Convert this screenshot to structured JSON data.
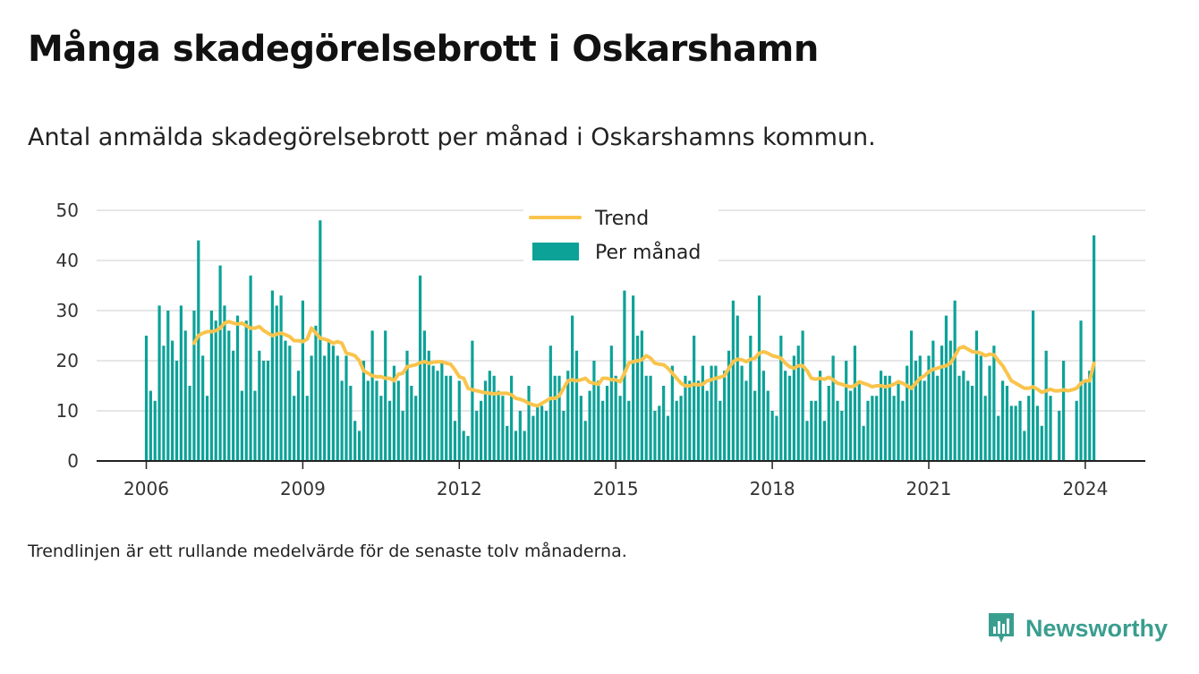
{
  "title": "Många skadegörelsebrott i Oskarshamn",
  "subtitle": "Antal anmälda skadegörelsebrott per månad i Oskarshamns kommun.",
  "note": "Trendlinjen är ett rullande medelvärde för de senaste tolv månaderna.",
  "brand": {
    "name": "Newsworthy",
    "color": "#3a9e8f"
  },
  "chart_data": {
    "type": "bar",
    "start": "2006-01",
    "x_ticks": [
      "2006",
      "2009",
      "2012",
      "2015",
      "2018",
      "2021",
      "2024"
    ],
    "y_ticks": [
      0,
      10,
      20,
      30,
      40,
      50
    ],
    "ylim": [
      0,
      50
    ],
    "grid": true,
    "legend_placement": "top-center",
    "series": [
      {
        "name": "Per månad",
        "kind": "bar",
        "color": "#0ca298",
        "values": [
          25,
          14,
          12,
          31,
          23,
          30,
          24,
          20,
          31,
          26,
          15,
          30,
          44,
          21,
          13,
          30,
          28,
          39,
          31,
          26,
          22,
          29,
          14,
          28,
          37,
          14,
          22,
          20,
          20,
          34,
          31,
          33,
          24,
          23,
          13,
          18,
          32,
          13,
          21,
          27,
          48,
          21,
          24,
          23,
          21,
          16,
          21,
          15,
          8,
          6,
          20,
          16,
          26,
          16,
          13,
          26,
          12,
          19,
          16,
          10,
          22,
          15,
          13,
          37,
          26,
          22,
          19,
          18,
          20,
          17,
          17,
          8,
          16,
          6,
          5,
          24,
          10,
          12,
          16,
          18,
          17,
          14,
          13,
          7,
          17,
          6,
          10,
          6,
          15,
          9,
          11,
          11,
          10,
          23,
          17,
          17,
          10,
          18,
          29,
          22,
          13,
          8,
          14,
          20,
          16,
          12,
          15,
          23,
          17,
          13,
          34,
          12,
          33,
          25,
          26,
          17,
          17,
          10,
          11,
          15,
          9,
          19,
          12,
          13,
          17,
          16,
          25,
          16,
          19,
          14,
          19,
          19,
          12,
          18,
          22,
          32,
          29,
          19,
          16,
          25,
          14,
          33,
          18,
          14,
          10,
          9,
          25,
          18,
          17,
          21,
          23,
          26,
          8,
          12,
          12,
          18,
          8,
          15,
          21,
          12,
          10,
          20,
          14,
          23,
          16,
          7,
          12,
          13,
          13,
          18,
          17,
          17,
          13,
          16,
          12,
          19,
          26,
          20,
          21,
          16,
          21,
          24,
          17,
          23,
          29,
          24,
          32,
          17,
          18,
          16,
          15,
          26,
          21,
          13,
          19,
          23,
          9,
          16,
          15,
          11,
          11,
          12,
          6,
          13,
          30,
          11,
          7,
          22,
          13,
          0,
          10,
          20,
          0,
          0,
          12,
          28,
          16,
          18,
          45
        ]
      },
      {
        "name": "Trend",
        "kind": "line",
        "color": "#f9c44c",
        "start_index": 11,
        "values": [
          23.5,
          25,
          25.5,
          25.8,
          25.8,
          26,
          26.5,
          27.5,
          27.8,
          27.5,
          27.3,
          27.5,
          27,
          26.5,
          26.5,
          26.8,
          26,
          25.5,
          25,
          25.3,
          25.5,
          25.2,
          24.8,
          24,
          24,
          23.8,
          24.3,
          26.5,
          25.5,
          24.5,
          24.3,
          24,
          23.5,
          23.8,
          23.5,
          21.5,
          21.3,
          21,
          20,
          18,
          17.5,
          17,
          16.8,
          16.8,
          16.5,
          16.5,
          16,
          17.3,
          17.5,
          18.8,
          19,
          19.2,
          19.6,
          19.8,
          19.5,
          19.7,
          19.8,
          19.8,
          19.5,
          19.3,
          18.2,
          16.8,
          16.5,
          14.5,
          14.2,
          14,
          13.8,
          13.6,
          13.5,
          13.4,
          13.5,
          13.5,
          13.5,
          13.2,
          12.5,
          12.3,
          12,
          11.5,
          11.2,
          11,
          11.5,
          12,
          12.5,
          12.5,
          13,
          14.5,
          16,
          16.2,
          16,
          16.2,
          16.5,
          15.7,
          15.5,
          15.3,
          16.5,
          16.5,
          16.2,
          16.2,
          15.8,
          17.5,
          19.5,
          19.8,
          20,
          20.2,
          21,
          20.5,
          19.5,
          19.3,
          19.2,
          18.5,
          17.5,
          16.5,
          15.5,
          15,
          15,
          15.3,
          15.2,
          15.3,
          16,
          16.2,
          16.5,
          16.7,
          17,
          18.5,
          19.8,
          20.3,
          20.2,
          19.8,
          20.3,
          20.5,
          21.5,
          21.8,
          21.5,
          21,
          20.8,
          20.5,
          19.5,
          18.8,
          18.5,
          19,
          19,
          18,
          16.5,
          16.3,
          16.5,
          16.3,
          16.7,
          16.2,
          15.5,
          15.3,
          15,
          14.8,
          15,
          15.8,
          15.5,
          15.2,
          14.8,
          15,
          15,
          14.8,
          15,
          15.3,
          15.8,
          15.5,
          15,
          14.5,
          15.5,
          16.5,
          17,
          17.8,
          18.3,
          18.5,
          18.8,
          19,
          19.5,
          21,
          22.5,
          22.8,
          22.3,
          21.8,
          21.7,
          21.5,
          21,
          21.3,
          21.2,
          20,
          19,
          17.5,
          16,
          15.5,
          15,
          14.5,
          14.5,
          14.8,
          14.3,
          13.7,
          14,
          14.3,
          14,
          14,
          14.2,
          14,
          14.2,
          14.5,
          15.5,
          16,
          16,
          19.5
        ]
      }
    ]
  }
}
